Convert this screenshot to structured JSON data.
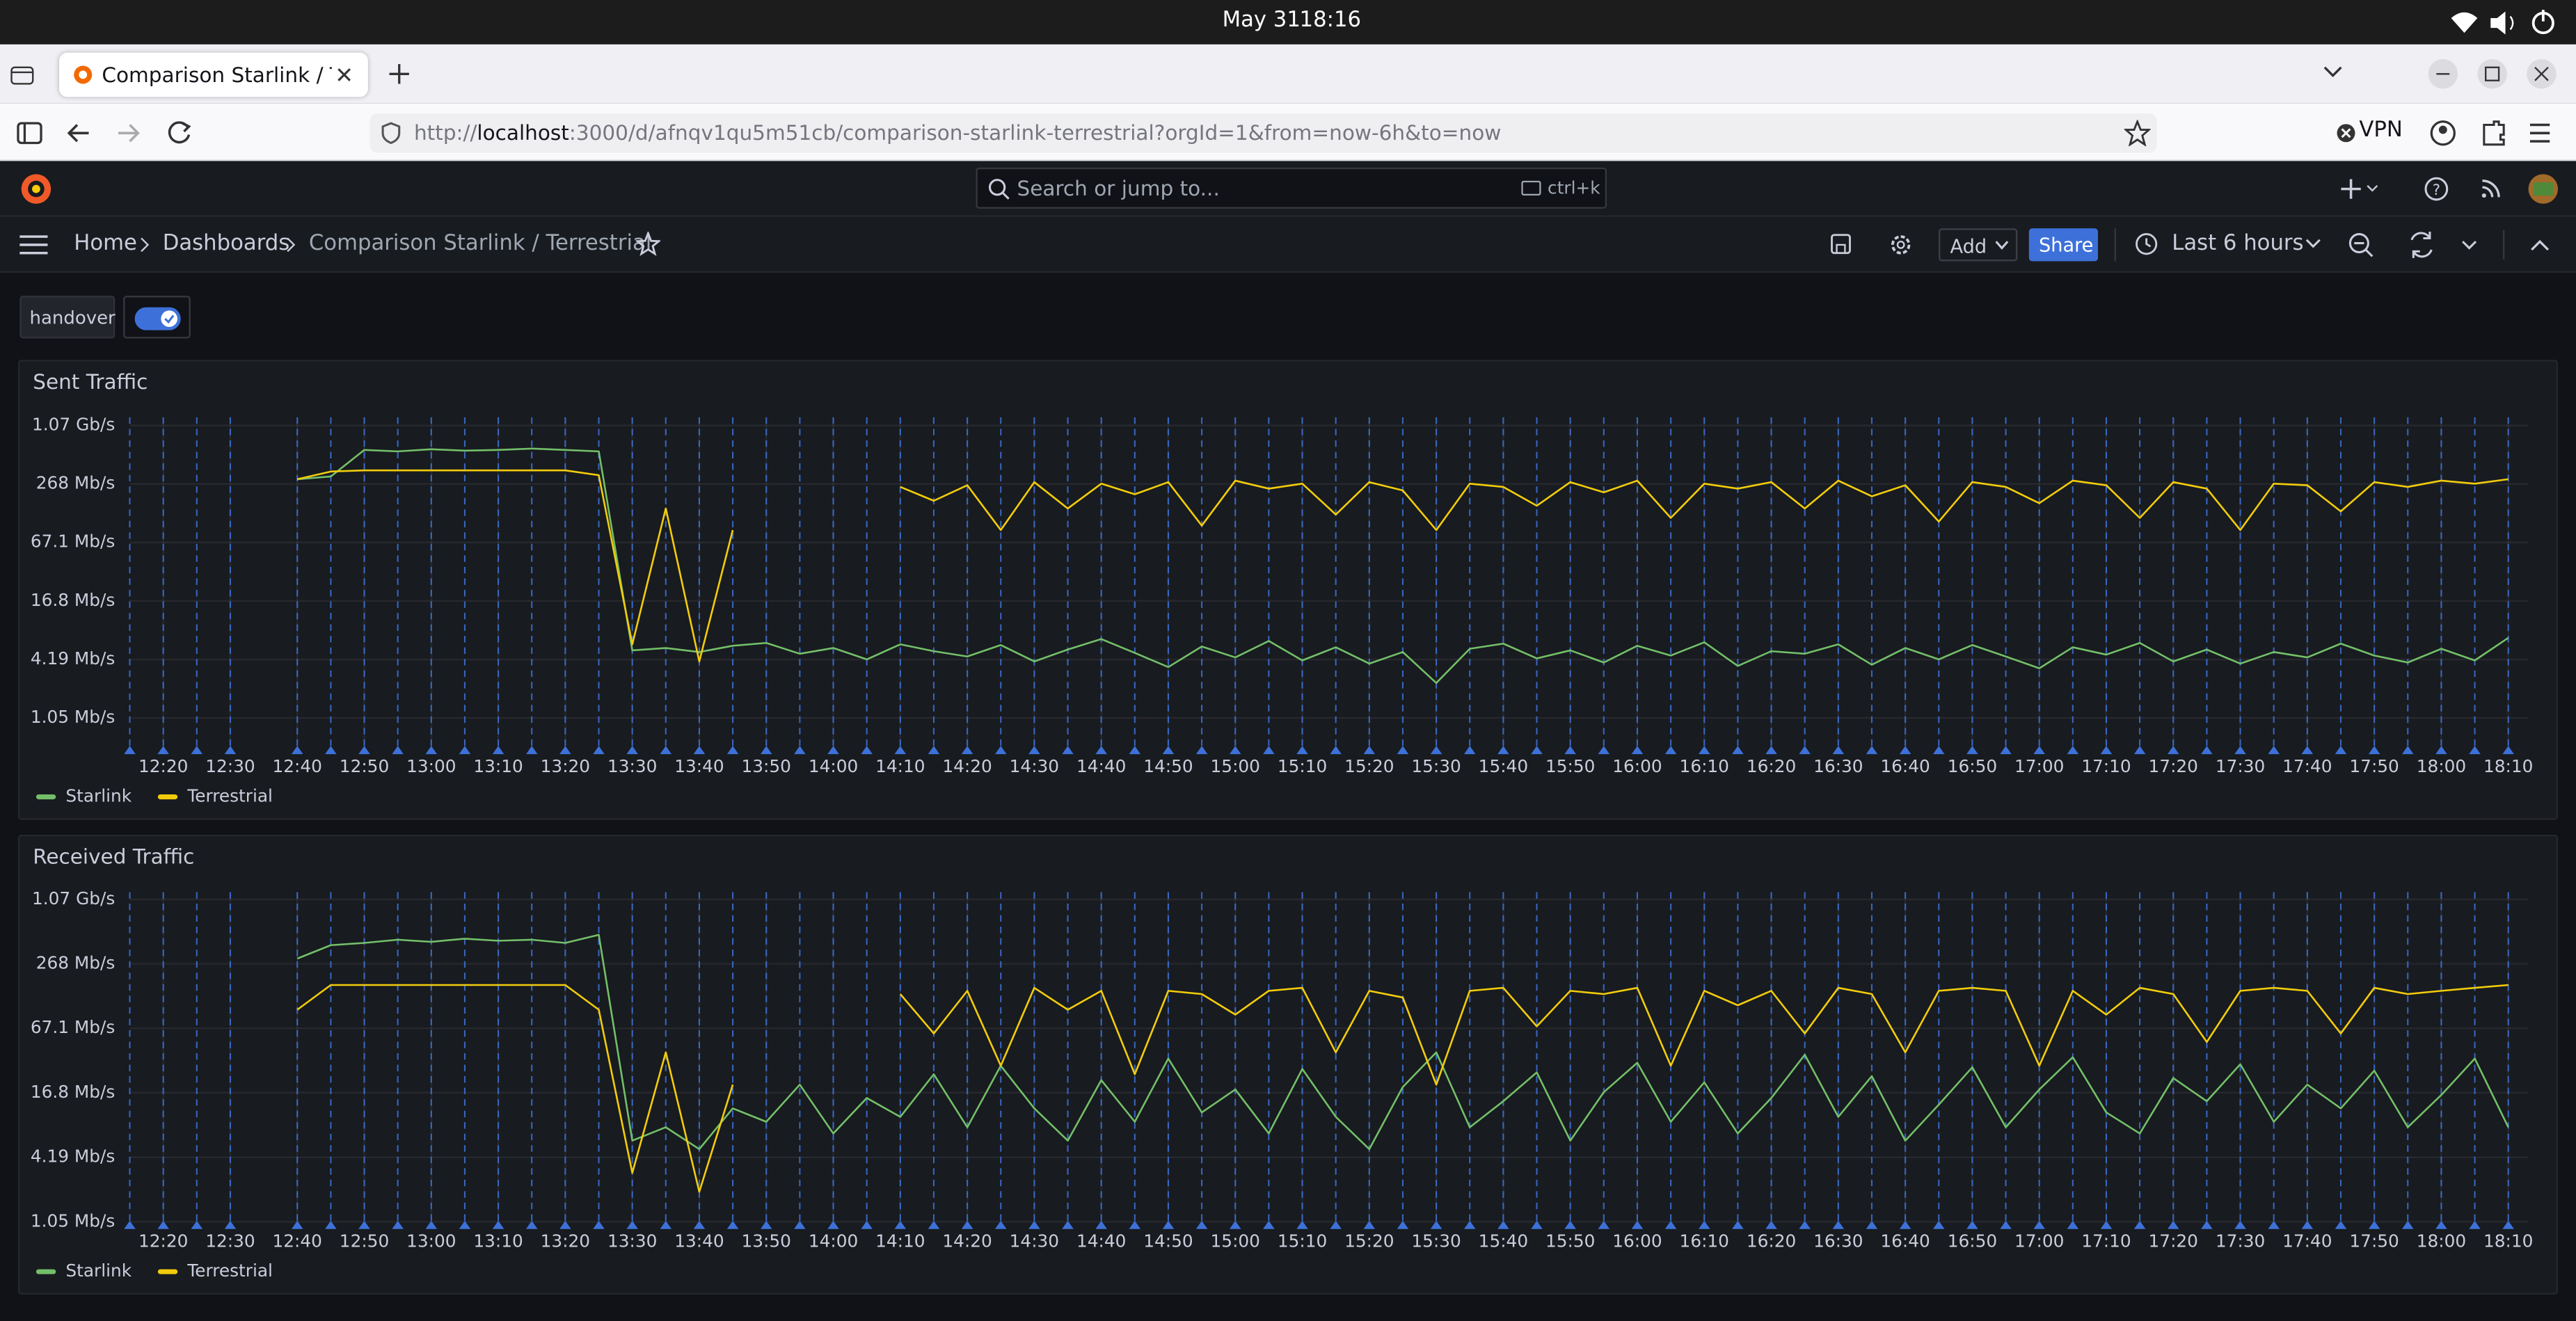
{
  "system_bar": {
    "date": "May 31",
    "time": "18:16"
  },
  "browser": {
    "tab_title": "Comparison Starlink / Ter",
    "url_parts": [
      "http://",
      "localhost",
      ":3000/d/afnqv1qu5m51cb/comparison-starlink-terrestrial?orgId=1&from=now-6h&to=now"
    ],
    "vpn": "VPN"
  },
  "grafana": {
    "search_placeholder": "Search or jump to...",
    "search_shortcut": "ctrl+k",
    "breadcrumbs": [
      "Home",
      "Dashboards",
      "Comparison Starlink / Terrestrial"
    ],
    "add_button": "Add",
    "share_button": "Share",
    "time_range": "Last 6 hours",
    "variable_label": "handover"
  },
  "chart_data": [
    {
      "type": "line",
      "title": "Sent Traffic",
      "yscale": "log",
      "grid": true,
      "legend": "bottom-left",
      "xlim": [
        "12:15",
        "18:13"
      ],
      "ylim": [
        0.5,
        1300
      ],
      "yticks": [
        {
          "value": 1.05,
          "label": "1.05 Mb/s"
        },
        {
          "value": 4.19,
          "label": "4.19 Mb/s"
        },
        {
          "value": 16.8,
          "label": "16.8 Mb/s"
        },
        {
          "value": 67.1,
          "label": "67.1 Mb/s"
        },
        {
          "value": 268,
          "label": "268 Mb/s"
        },
        {
          "value": 1070,
          "label": "1.07 Gb/s"
        }
      ],
      "xticks": [
        "12:20",
        "12:30",
        "12:40",
        "12:50",
        "13:00",
        "13:10",
        "13:20",
        "13:30",
        "13:40",
        "13:50",
        "14:00",
        "14:10",
        "14:20",
        "14:30",
        "14:40",
        "14:50",
        "15:00",
        "15:10",
        "15:20",
        "15:30",
        "15:40",
        "15:50",
        "16:00",
        "16:10",
        "16:20",
        "16:30",
        "16:40",
        "16:50",
        "17:00",
        "17:10",
        "17:20",
        "17:30",
        "17:40",
        "17:50",
        "18:00",
        "18:10"
      ],
      "annotation_color": "#3d71d9",
      "annotations": [
        "12:15",
        "12:20",
        "12:25",
        "12:30",
        "12:40",
        "12:45",
        "12:50",
        "12:55",
        "13:00",
        "13:05",
        "13:10",
        "13:15",
        "13:20",
        "13:25",
        "13:30",
        "13:35",
        "13:40",
        "13:45",
        "13:50",
        "13:55",
        "14:00",
        "14:05",
        "14:10",
        "14:15",
        "14:20",
        "14:25",
        "14:30",
        "14:35",
        "14:40",
        "14:45",
        "14:50",
        "14:55",
        "15:00",
        "15:05",
        "15:10",
        "15:15",
        "15:20",
        "15:25",
        "15:30",
        "15:35",
        "15:40",
        "15:45",
        "15:50",
        "15:55",
        "16:00",
        "16:05",
        "16:10",
        "16:15",
        "16:20",
        "16:25",
        "16:30",
        "16:35",
        "16:40",
        "16:45",
        "16:50",
        "16:55",
        "17:00",
        "17:05",
        "17:10",
        "17:15",
        "17:20",
        "17:25",
        "17:30",
        "17:35",
        "17:40",
        "17:45",
        "17:50",
        "17:55",
        "18:00",
        "18:05",
        "18:10"
      ],
      "x": [
        "12:40",
        "12:45",
        "12:50",
        "12:55",
        "13:00",
        "13:05",
        "13:10",
        "13:15",
        "13:20",
        "13:25",
        "13:30",
        "13:35",
        "13:40",
        "13:45",
        "13:50",
        "13:55",
        "14:00",
        "14:05",
        "14:10",
        "14:15",
        "14:20",
        "14:25",
        "14:30",
        "14:35",
        "14:40",
        "14:45",
        "14:50",
        "14:55",
        "15:00",
        "15:05",
        "15:10",
        "15:15",
        "15:20",
        "15:25",
        "15:30",
        "15:35",
        "15:40",
        "15:45",
        "15:50",
        "15:55",
        "16:00",
        "16:05",
        "16:10",
        "16:15",
        "16:20",
        "16:25",
        "16:30",
        "16:35",
        "16:40",
        "16:45",
        "16:50",
        "16:55",
        "17:00",
        "17:05",
        "17:10",
        "17:15",
        "17:20",
        "17:25",
        "17:30",
        "17:35",
        "17:40",
        "17:45",
        "17:50",
        "17:55",
        "18:00",
        "18:05",
        "18:10"
      ],
      "series": [
        {
          "name": "Starlink",
          "color": "#73bf69",
          "values": [
            300,
            320,
            600,
            580,
            610,
            590,
            600,
            620,
            600,
            580,
            5.2,
            5.5,
            5.0,
            5.8,
            6.2,
            4.8,
            5.5,
            4.2,
            6.0,
            5.1,
            4.5,
            5.9,
            4.0,
            5.3,
            6.8,
            4.9,
            3.5,
            5.7,
            4.4,
            6.5,
            4.1,
            5.6,
            3.8,
            5.0,
            2.4,
            5.4,
            6.1,
            4.3,
            5.2,
            3.9,
            5.8,
            4.6,
            6.3,
            3.6,
            5.1,
            4.8,
            6.0,
            3.7,
            5.5,
            4.2,
            5.9,
            4.5,
            3.4,
            5.6,
            4.7,
            6.2,
            4.0,
            5.3,
            3.8,
            5.0,
            4.4,
            6.1,
            4.6,
            3.9,
            5.4,
            4.1,
            7.0
          ]
        },
        {
          "name": "Terrestrial",
          "color": "#f2cc0c",
          "values": [
            300,
            360,
            370,
            370,
            370,
            370,
            370,
            370,
            370,
            330,
            6,
            150,
            4,
            90,
            null,
            null,
            null,
            null,
            250,
            180,
            260,
            90,
            280,
            150,
            270,
            210,
            280,
            100,
            290,
            240,
            270,
            130,
            280,
            230,
            90,
            270,
            250,
            160,
            280,
            220,
            290,
            120,
            270,
            240,
            280,
            150,
            290,
            200,
            260,
            110,
            280,
            250,
            170,
            290,
            260,
            120,
            280,
            240,
            90,
            270,
            260,
            140,
            280,
            250,
            290,
            270,
            300
          ]
        }
      ]
    },
    {
      "type": "line",
      "title": "Received Traffic",
      "yscale": "log",
      "grid": true,
      "legend": "bottom-left",
      "xlim": [
        "12:15",
        "18:13"
      ],
      "ylim": [
        1,
        1250
      ],
      "yticks": [
        {
          "value": 1.05,
          "label": "1.05 Mb/s"
        },
        {
          "value": 4.19,
          "label": "4.19 Mb/s"
        },
        {
          "value": 16.8,
          "label": "16.8 Mb/s"
        },
        {
          "value": 67.1,
          "label": "67.1 Mb/s"
        },
        {
          "value": 268,
          "label": "268 Mb/s"
        },
        {
          "value": 1070,
          "label": "1.07 Gb/s"
        }
      ],
      "xticks": [
        "12:20",
        "12:30",
        "12:40",
        "12:50",
        "13:00",
        "13:10",
        "13:20",
        "13:30",
        "13:40",
        "13:50",
        "14:00",
        "14:10",
        "14:20",
        "14:30",
        "14:40",
        "14:50",
        "15:00",
        "15:10",
        "15:20",
        "15:30",
        "15:40",
        "15:50",
        "16:00",
        "16:10",
        "16:20",
        "16:30",
        "16:40",
        "16:50",
        "17:00",
        "17:10",
        "17:20",
        "17:30",
        "17:40",
        "17:50",
        "18:00",
        "18:10"
      ],
      "annotation_color": "#3d71d9",
      "annotations": [
        "12:15",
        "12:20",
        "12:25",
        "12:30",
        "12:40",
        "12:45",
        "12:50",
        "12:55",
        "13:00",
        "13:05",
        "13:10",
        "13:15",
        "13:20",
        "13:25",
        "13:30",
        "13:35",
        "13:40",
        "13:45",
        "13:50",
        "13:55",
        "14:00",
        "14:05",
        "14:10",
        "14:15",
        "14:20",
        "14:25",
        "14:30",
        "14:35",
        "14:40",
        "14:45",
        "14:50",
        "14:55",
        "15:00",
        "15:05",
        "15:10",
        "15:15",
        "15:20",
        "15:25",
        "15:30",
        "15:35",
        "15:40",
        "15:45",
        "15:50",
        "15:55",
        "16:00",
        "16:05",
        "16:10",
        "16:15",
        "16:20",
        "16:25",
        "16:30",
        "16:35",
        "16:40",
        "16:45",
        "16:50",
        "16:55",
        "17:00",
        "17:05",
        "17:10",
        "17:15",
        "17:20",
        "17:25",
        "17:30",
        "17:35",
        "17:40",
        "17:45",
        "17:50",
        "17:55",
        "18:00",
        "18:05",
        "18:10"
      ],
      "x": [
        "12:40",
        "12:45",
        "12:50",
        "12:55",
        "13:00",
        "13:05",
        "13:10",
        "13:15",
        "13:20",
        "13:25",
        "13:30",
        "13:35",
        "13:40",
        "13:45",
        "13:50",
        "13:55",
        "14:00",
        "14:05",
        "14:10",
        "14:15",
        "14:20",
        "14:25",
        "14:30",
        "14:35",
        "14:40",
        "14:45",
        "14:50",
        "14:55",
        "15:00",
        "15:05",
        "15:10",
        "15:15",
        "15:20",
        "15:25",
        "15:30",
        "15:35",
        "15:40",
        "15:45",
        "15:50",
        "15:55",
        "16:00",
        "16:05",
        "16:10",
        "16:15",
        "16:20",
        "16:25",
        "16:30",
        "16:35",
        "16:40",
        "16:45",
        "16:50",
        "16:55",
        "17:00",
        "17:05",
        "17:10",
        "17:15",
        "17:20",
        "17:25",
        "17:30",
        "17:35",
        "17:40",
        "17:45",
        "17:50",
        "17:55",
        "18:00",
        "18:05",
        "18:10"
      ],
      "series": [
        {
          "name": "Starlink",
          "color": "#73bf69",
          "values": [
            300,
            400,
            420,
            450,
            430,
            460,
            440,
            450,
            420,
            500,
            6,
            8,
            5,
            12,
            9,
            20,
            7,
            15,
            10,
            25,
            8,
            30,
            12,
            6,
            22,
            9,
            35,
            11,
            18,
            7,
            28,
            10,
            5,
            19,
            40,
            8,
            14,
            26,
            6,
            17,
            32,
            9,
            21,
            7,
            15,
            38,
            10,
            24,
            6,
            13,
            29,
            8,
            18,
            36,
            11,
            7,
            23,
            14,
            31,
            9,
            20,
            12,
            27,
            8,
            16,
            35,
            8
          ]
        },
        {
          "name": "Terrestrial",
          "color": "#f2cc0c",
          "values": [
            100,
            170,
            170,
            170,
            170,
            170,
            170,
            170,
            170,
            100,
            3,
            40,
            2,
            20,
            null,
            null,
            null,
            null,
            140,
            60,
            150,
            30,
            160,
            100,
            150,
            25,
            150,
            140,
            90,
            150,
            160,
            40,
            150,
            130,
            20,
            150,
            160,
            70,
            150,
            140,
            160,
            30,
            150,
            110,
            150,
            60,
            160,
            140,
            40,
            150,
            160,
            150,
            30,
            150,
            90,
            160,
            140,
            50,
            150,
            160,
            150,
            60,
            160,
            140,
            150,
            160,
            170
          ]
        }
      ]
    }
  ]
}
